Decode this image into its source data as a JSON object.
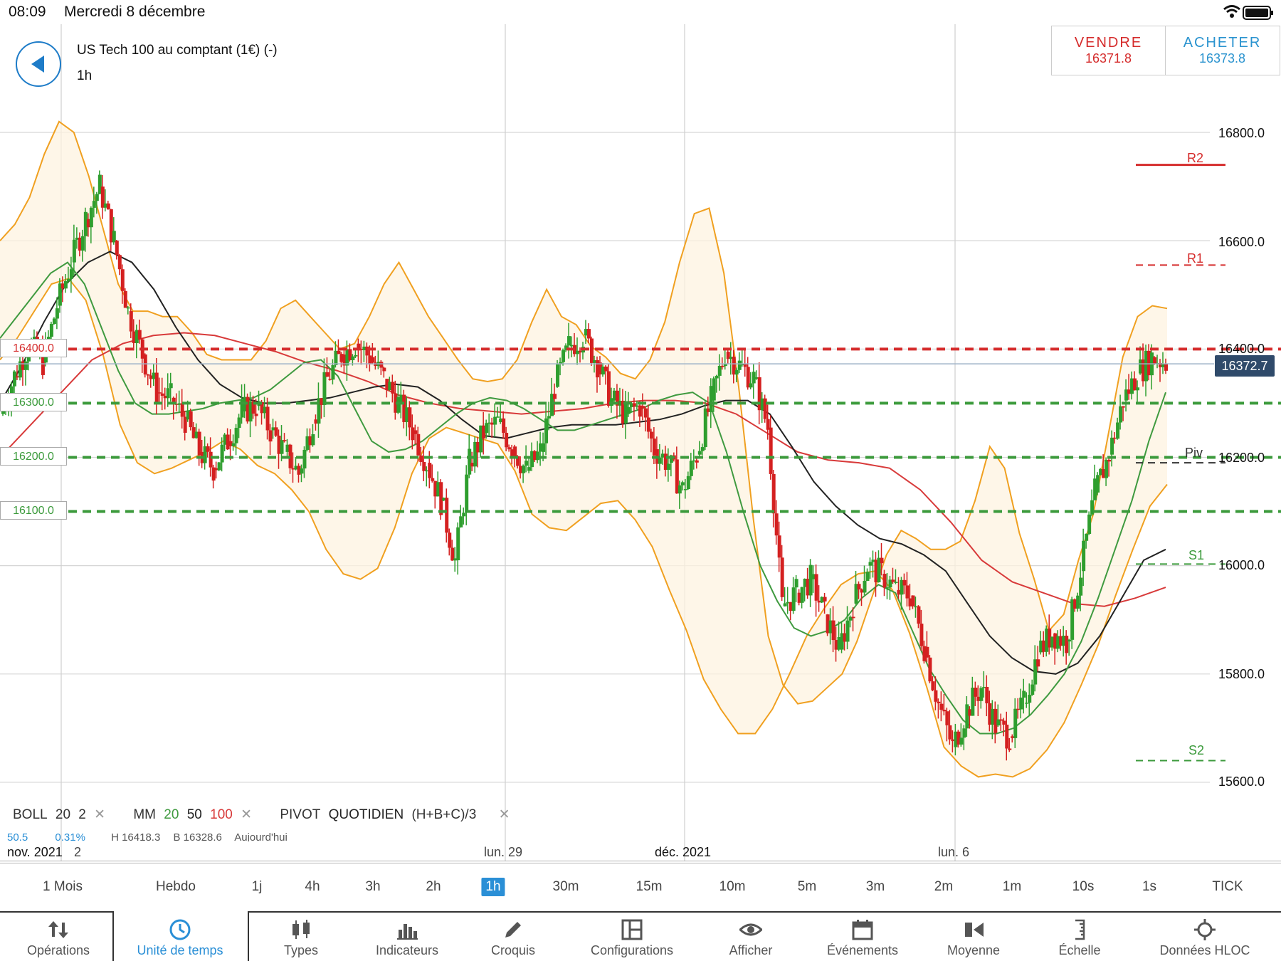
{
  "status": {
    "time": "08:09",
    "date": "Mercredi 8 décembre"
  },
  "header": {
    "instrument": "US Tech 100 au comptant (1€) (-)",
    "period": "1h",
    "back_icon": "back-arrow-icon"
  },
  "trade": {
    "sell_label": "VENDRE",
    "sell_price": "16371.8",
    "buy_label": "ACHETER",
    "buy_price": "16373.8"
  },
  "colors": {
    "sell": "#d52c2c",
    "buy": "#2a93cf",
    "accent": "#2a8fd6",
    "up": "#2e9e2e",
    "down": "#d42020",
    "bollinger": "#f0a020",
    "ma20": "#3f9a3f",
    "ma50": "#222222",
    "ma100": "#d83a3a",
    "resistance": "#d52c2c",
    "support": "#3b9a3b"
  },
  "price_axis": {
    "labels": [
      "16800.0",
      "16600.0",
      "16400.0",
      "16200.0",
      "16000.0",
      "15800.0",
      "15600.0"
    ],
    "current_price": "16372.7"
  },
  "alert_levels": [
    "16400.0",
    "16300.0",
    "16200.0",
    "16100.0"
  ],
  "pivots": [
    {
      "label": "R2",
      "value": 16740,
      "style": "solid"
    },
    {
      "label": "R1",
      "value": 16555,
      "style": "dashed"
    },
    {
      "label": "Piv",
      "value": 16190,
      "style": "dashed"
    },
    {
      "label": "S1",
      "value": 16003,
      "style": "dashed"
    },
    {
      "label": "S2",
      "value": 15640,
      "style": "dashed"
    }
  ],
  "time_axis": {
    "labels": [
      "nov. 2021",
      "2",
      "lun. 29",
      "déc. 2021",
      "lun. 6"
    ]
  },
  "indicators": {
    "boll": {
      "name": "BOLL",
      "p1": "20",
      "p2": "2"
    },
    "mm": {
      "name": "MM",
      "p1": "20",
      "p2": "50",
      "p3": "100"
    },
    "pivot": {
      "name": "PIVOT",
      "mode": "QUOTIDIEN",
      "formula": "(H+B+C)/3"
    },
    "remove_icon": "close-icon",
    "summary": {
      "a": "50.5",
      "b": "0.31%",
      "h": "H 16418.3",
      "b2": "B 16328.6",
      "when": "Aujourd'hui"
    }
  },
  "timeframes": [
    "1 Mois",
    "Hebdo",
    "1j",
    "4h",
    "3h",
    "2h",
    "1h",
    "30m",
    "15m",
    "10m",
    "5m",
    "3m",
    "2m",
    "1m",
    "10s",
    "1s",
    "TICK"
  ],
  "active_timeframe": "1h",
  "toolbar": [
    {
      "label": "Opérations",
      "icon": "sort-arrows-icon"
    },
    {
      "label": "Unité de temps",
      "icon": "clock-icon"
    },
    {
      "label": "Types",
      "icon": "candlestick-icon"
    },
    {
      "label": "Indicateurs",
      "icon": "bar-chart-icon"
    },
    {
      "label": "Croquis",
      "icon": "pencil-icon"
    },
    {
      "label": "Configurations",
      "icon": "layout-icon"
    },
    {
      "label": "Afficher",
      "icon": "eye-icon"
    },
    {
      "label": "Événements",
      "icon": "calendar-icon"
    },
    {
      "label": "Moyenne",
      "icon": "average-icon"
    },
    {
      "label": "Échelle",
      "icon": "scale-icon"
    },
    {
      "label": "Données HLOC",
      "icon": "crosshair-icon"
    }
  ],
  "chart_data": {
    "type": "candlestick",
    "ylim": [
      15500,
      16880
    ],
    "grid": true,
    "price_series": [
      16280,
      16350,
      16410,
      16375,
      16480,
      16560,
      16640,
      16700,
      16600,
      16470,
      16390,
      16320,
      16310,
      16270,
      16210,
      16180,
      16230,
      16285,
      16295,
      16250,
      16210,
      16170,
      16270,
      16345,
      16390,
      16410,
      16385,
      16345,
      16300,
      16250,
      16190,
      16120,
      16010,
      16190,
      16245,
      16265,
      16220,
      16175,
      16210,
      16330,
      16405,
      16425,
      16375,
      16305,
      16280,
      16295,
      16215,
      16190,
      16140,
      16205,
      16305,
      16395,
      16370,
      16345,
      16255,
      15925,
      15950,
      15975,
      15910,
      15845,
      15930,
      16000,
      15985,
      15955,
      15945,
      15850,
      15745,
      15665,
      15735,
      15775,
      15705,
      15685,
      15745,
      15840,
      15875,
      15860,
      15990,
      16135,
      16205,
      16305,
      16355,
      16385,
      16375
    ],
    "bollinger_upper": [
      16600,
      16630,
      16680,
      16760,
      16820,
      16800,
      16720,
      16620,
      16520,
      16470,
      16470,
      16460,
      16460,
      16430,
      16390,
      16380,
      16380,
      16380,
      16415,
      16475,
      16490,
      16460,
      16430,
      16400,
      16410,
      16460,
      16520,
      16560,
      16510,
      16460,
      16420,
      16380,
      16345,
      16340,
      16345,
      16380,
      16450,
      16510,
      16460,
      16445,
      16405,
      16385,
      16355,
      16345,
      16380,
      16450,
      16560,
      16650,
      16660,
      16540,
      16330,
      16085,
      15870,
      15780,
      15745,
      15750,
      15775,
      15800,
      15860,
      15940,
      16020,
      16065,
      16050,
      16030,
      16030,
      16045,
      16120,
      16220,
      16180,
      16060,
      15975,
      15880,
      15910,
      16010,
      16095,
      16240,
      16385,
      16460,
      16480,
      16475
    ],
    "bollinger_lower": [
      16380,
      16420,
      16470,
      16520,
      16530,
      16490,
      16390,
      16260,
      16190,
      16170,
      16180,
      16195,
      16210,
      16230,
      16215,
      16185,
      16170,
      16140,
      16100,
      16030,
      15985,
      15975,
      15995,
      16070,
      16170,
      16235,
      16255,
      16245,
      16235,
      16225,
      16175,
      16095,
      16070,
      16065,
      16090,
      16115,
      16120,
      16085,
      16035,
      15955,
      15880,
      15790,
      15735,
      15690,
      15690,
      15735,
      15800,
      15870,
      15920,
      15965,
      15985,
      15990,
      15955,
      15875,
      15775,
      15665,
      15630,
      15610,
      15615,
      15610,
      15625,
      15660,
      15710,
      15780,
      15855,
      15945,
      16030,
      16110,
      16150
    ],
    "ma20": [
      16420,
      16460,
      16500,
      16540,
      16560,
      16520,
      16440,
      16360,
      16300,
      16280,
      16280,
      16285,
      16290,
      16300,
      16305,
      16310,
      16325,
      16350,
      16375,
      16380,
      16350,
      16290,
      16230,
      16210,
      16215,
      16230,
      16255,
      16280,
      16300,
      16310,
      16305,
      16290,
      16270,
      16250,
      16250,
      16260,
      16270,
      16280,
      16290,
      16305,
      16315,
      16320,
      16300,
      16210,
      16100,
      16000,
      15935,
      15885,
      15870,
      15880,
      15900,
      15940,
      15965,
      15950,
      15880,
      15810,
      15760,
      15715,
      15690,
      15690,
      15700,
      15725,
      15760,
      15800,
      15860,
      15940,
      16030,
      16120,
      16230,
      16320
    ],
    "ma50": [
      16300,
      16370,
      16450,
      16520,
      16560,
      16580,
      16560,
      16510,
      16440,
      16380,
      16335,
      16310,
      16300,
      16300,
      16305,
      16310,
      16320,
      16330,
      16335,
      16330,
      16305,
      16270,
      16240,
      16235,
      16245,
      16255,
      16260,
      16260,
      16260,
      16265,
      16270,
      16280,
      16295,
      16305,
      16305,
      16280,
      16220,
      16155,
      16110,
      16075,
      16050,
      16040,
      16020,
      15990,
      15930,
      15870,
      15830,
      15805,
      15800,
      15820,
      15870,
      15940,
      16010,
      16030
    ],
    "ma100": [
      16200,
      16260,
      16320,
      16380,
      16410,
      16425,
      16430,
      16425,
      16410,
      16395,
      16375,
      16360,
      16340,
      16315,
      16300,
      16290,
      16285,
      16280,
      16285,
      16290,
      16300,
      16305,
      16305,
      16300,
      16280,
      16245,
      16210,
      16195,
      16190,
      16180,
      16140,
      16080,
      16010,
      15970,
      15950,
      15930,
      15925,
      15940,
      15960
    ]
  }
}
